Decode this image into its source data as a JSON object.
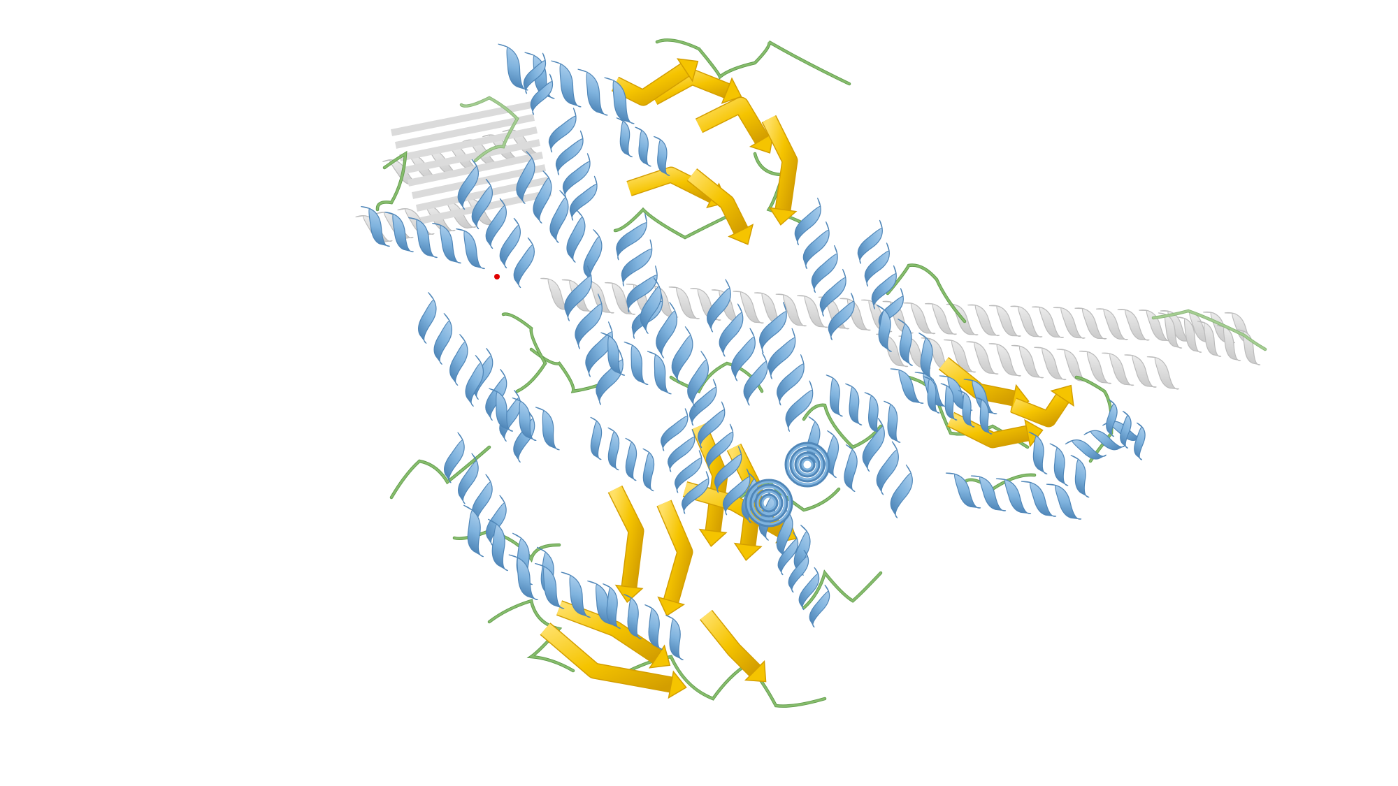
{
  "viewer": {
    "background": "#ffffff",
    "representation": "cartoon"
  },
  "structure": {
    "colors": {
      "helix": "#7fb3de",
      "helix_shade": "#4f86b8",
      "sheet": "#f5c400",
      "sheet_shade": "#d39e00",
      "coil": "#86bc6c",
      "context_chain": "#c8c8c8",
      "ligand": "#e00000"
    }
  }
}
